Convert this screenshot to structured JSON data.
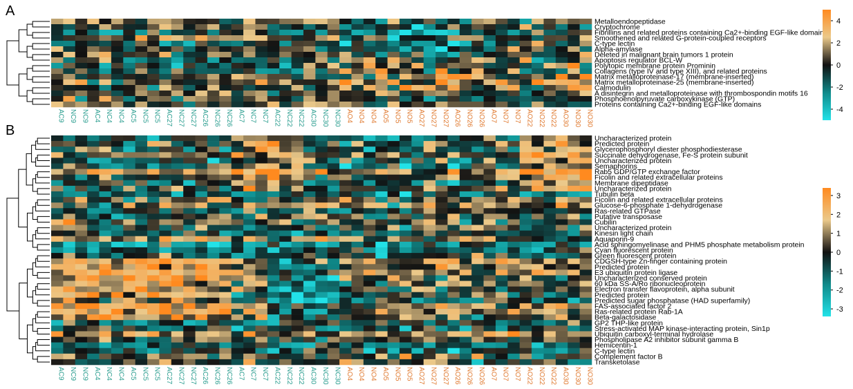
{
  "chart_data": [
    {
      "type": "heatmap",
      "panel_label": "A",
      "rows": [
        "Metalloendopeptidase",
        "Cryptochrome",
        "Fibrillins and related proteins containing Ca2+-binding EGF-like domains",
        "Smoothened and related G-protein-coupled receptors",
        "C-type lectin",
        "Alpha-amylase",
        "Deleted in malignant brain tumors 1 protein",
        "Apoptosis regulator BCL-W",
        "Polytopic membrane protein Prominin",
        "Collagens (type IV and type XIII), and related proteins",
        "Matrix metalloproteinase-17 (membrane-inserted)",
        "Matrix metalloproteinase-25 (membrane-inserted)",
        "Calmodulin",
        "A disintegrin and metalloproteinase with thrombospondin motifs 16",
        "Phosphoenolpyruvate carboxykinase (GTP)",
        "Proteins containing Ca2+-binding EGF-like domains"
      ],
      "colorbar": {
        "ticks": [
          4,
          2,
          0,
          -2,
          -4
        ],
        "min": -5,
        "max": 5
      }
    },
    {
      "type": "heatmap",
      "panel_label": "B",
      "rows": [
        "Uncharacterized protein",
        "Predicted protein",
        "Glycerophosphoryl diester phosphodiesterase",
        "Succinate dehydrogenase, Fe-S protein subunit",
        "Uncharacterized protein",
        "Semaphorins",
        "Rab5 GDP/GTP exchange factor",
        "Ficolin and related extracellular proteins",
        "Membrane dipeptidase",
        "Uncharacterized protein",
        "Tubulin beta",
        "Ficolin and related extracellular proteins",
        "Glucose-6-phosphate 1-dehydrogenase",
        "Ras-related GTPase",
        "Putative transposase",
        "Cubilin",
        "Uncharacterized protein",
        "Kinesin light chain",
        "Aquaporin-9",
        "Acid sphingomyelinase and PHM5 phosphate metabolism protein",
        "Cyan fluorescent protein",
        "Green fluorescent protein",
        "CDGSH-type Zn-finger containing protein",
        "Predicted protein",
        "E3 ubiquitin protein ligase",
        "Uncharacterized conserved protein",
        "60 kDa SS-A/Ro ribonucleoprotein",
        "Electron transfer flavoprotein, alpha subunit",
        "Predicted protein",
        "Predicted sugar phosphatase (HAD superfamily)",
        "FAS-associated factor 2",
        "Ras-related protein Rab-1A",
        "Beta-galactosidase",
        "GP2 THP-like protein",
        "Stress-activated MAP kinase-interacting protein, Sin1p",
        "Ubiquitin carboxyl-terminal hydrolase",
        "Phospholipase A2 inhibitor subunit gamma B",
        "Hemicentin-1",
        "C-type lectin",
        "Complement factor B",
        "Transketolase"
      ],
      "colorbar": {
        "ticks": [
          3,
          2,
          1,
          0,
          -1,
          -2,
          -3
        ],
        "min": -3.4,
        "max": 3.4
      }
    }
  ],
  "columns": [
    "AC9",
    "NC9",
    "NC9",
    "AC4",
    "NC4",
    "NC4",
    "AC5",
    "NC5",
    "NC5",
    "AC27",
    "NC27",
    "NC27",
    "AC26",
    "NC26",
    "NC26",
    "AC7",
    "NC7",
    "NC7",
    "AC22",
    "NC22",
    "NC22",
    "AC30",
    "NC30",
    "NC30",
    "AO4",
    "NO4",
    "NO4",
    "AO5",
    "NO5",
    "NO5",
    "AO27",
    "NO27",
    "NO27",
    "AO26",
    "NO26",
    "NO26",
    "AO7",
    "NO7",
    "NO7",
    "AO22",
    "NO22",
    "NO22",
    "AO30",
    "NO30",
    "NO30"
  ],
  "column_colors": {
    "C": "#2a9d8f",
    "O": "#e07a30"
  },
  "scale_colors": {
    "low": "#22e2e8",
    "mid": "#111111",
    "high": "#ff8a1f",
    "mid_high": "#ebc98a",
    "mid_low": "#0f8a8a"
  }
}
